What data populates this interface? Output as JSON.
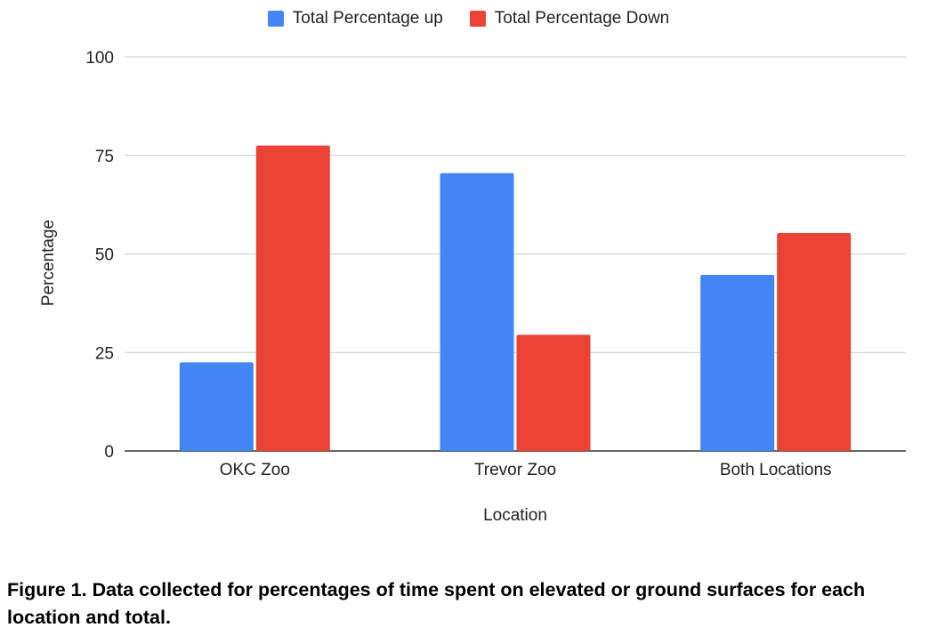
{
  "chart_data": {
    "type": "bar",
    "categories": [
      "OKC Zoo",
      "Trevor Zoo",
      "Both Locations"
    ],
    "series": [
      {
        "name": "Total Percentage up",
        "color": "#4285F4",
        "values": [
          22.5,
          70.5,
          44.7
        ]
      },
      {
        "name": "Total Percentage Down",
        "color": "#EA4335",
        "values": [
          77.5,
          29.5,
          55.3
        ]
      }
    ],
    "xlabel": "Location",
    "ylabel": "Percentage",
    "ylim": [
      0,
      100
    ],
    "yticks": [
      "0",
      "25",
      "50",
      "75",
      "100"
    ],
    "grid": true,
    "legend_position": "top-center"
  },
  "caption": "Figure 1. Data collected for percentages of time spent on elevated or ground surfaces for each location and total."
}
